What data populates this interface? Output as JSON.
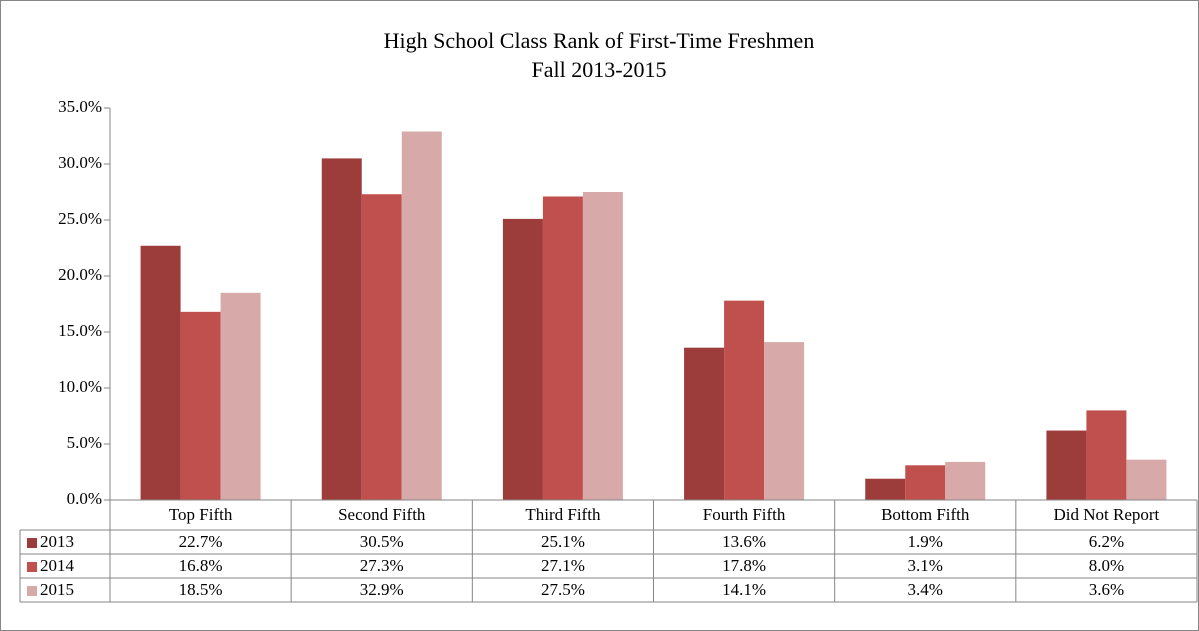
{
  "chart_data": {
    "type": "bar",
    "title": "High School Class Rank of First-Time Freshmen",
    "subtitle": "Fall 2013-2015",
    "categories": [
      "Top Fifth",
      "Second Fifth",
      "Third Fifth",
      "Fourth Fifth",
      "Bottom Fifth",
      "Did Not Report"
    ],
    "series": [
      {
        "name": "2013",
        "color": "#9c3d3b",
        "values": [
          22.7,
          30.5,
          25.1,
          13.6,
          1.9,
          6.2
        ],
        "value_labels": [
          "22.7%",
          "30.5%",
          "25.1%",
          "13.6%",
          "1.9%",
          "6.2%"
        ]
      },
      {
        "name": "2014",
        "color": "#c0504d",
        "values": [
          16.8,
          27.3,
          27.1,
          17.8,
          3.1,
          8.0
        ],
        "value_labels": [
          "16.8%",
          "27.3%",
          "27.1%",
          "17.8%",
          "3.1%",
          "8.0%"
        ]
      },
      {
        "name": "2015",
        "color": "#d8a9a9",
        "values": [
          18.5,
          32.9,
          27.5,
          14.1,
          3.4,
          3.6
        ],
        "value_labels": [
          "18.5%",
          "32.9%",
          "27.5%",
          "14.1%",
          "3.4%",
          "3.6%"
        ]
      }
    ],
    "ylim": [
      0,
      35
    ],
    "yticks": [
      {
        "value": 0,
        "label": "0.0%"
      },
      {
        "value": 5,
        "label": "5.0%"
      },
      {
        "value": 10,
        "label": "10.0%"
      },
      {
        "value": 15,
        "label": "15.0%"
      },
      {
        "value": 20,
        "label": "20.0%"
      },
      {
        "value": 25,
        "label": "25.0%"
      },
      {
        "value": 30,
        "label": "30.0%"
      },
      {
        "value": 35,
        "label": "35.0%"
      }
    ],
    "grid": false
  }
}
